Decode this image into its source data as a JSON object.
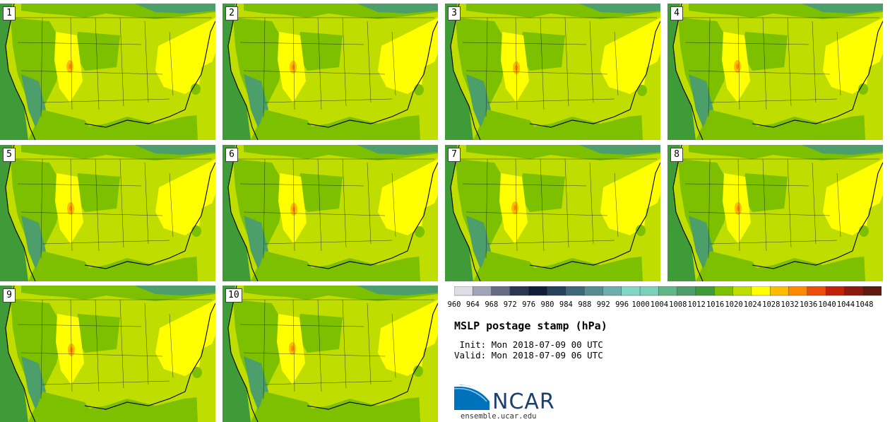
{
  "title": "MSLP postage stamp (hPa)",
  "init_text": " Init: Mon 2018-07-09 00 UTC",
  "valid_text": "Valid: Mon 2018-07-09 06 UTC",
  "logo_text": "NCAR",
  "url_text": "ensemble.ucar.edu",
  "stamps": [
    {
      "label": "1"
    },
    {
      "label": "2"
    },
    {
      "label": "3"
    },
    {
      "label": "4"
    },
    {
      "label": "5"
    },
    {
      "label": "6"
    },
    {
      "label": "7"
    },
    {
      "label": "8"
    },
    {
      "label": "9"
    },
    {
      "label": "10"
    }
  ],
  "colors": {
    "ocean": "#3f9a38",
    "low_land": "#7cc000",
    "mid": "#c0dd00",
    "high": "#ffff00",
    "peak": "#ffbb00",
    "hot": "#ff8800",
    "teal": "#4c9e6a",
    "border": "#000000"
  },
  "chart_data": {
    "type": "heatmap",
    "title": "MSLP postage stamp (hPa)",
    "units": "hPa",
    "colorbar": {
      "tick_labels": [
        "960",
        "964",
        "968",
        "972",
        "976",
        "980",
        "984",
        "988",
        "992",
        "996",
        "1000",
        "1004",
        "1008",
        "1012",
        "1016",
        "1020",
        "1024",
        "1028",
        "1032",
        "1036",
        "1040",
        "1044",
        "1048"
      ],
      "bins": [
        {
          "lower": 960,
          "color": "#dddde6"
        },
        {
          "lower": 964,
          "color": "#a2a4b7"
        },
        {
          "lower": 968,
          "color": "#646b85"
        },
        {
          "lower": 972,
          "color": "#2b3653"
        },
        {
          "lower": 976,
          "color": "#0f1f3b"
        },
        {
          "lower": 980,
          "color": "#26415b"
        },
        {
          "lower": 984,
          "color": "#3e6879"
        },
        {
          "lower": 988,
          "color": "#588c91"
        },
        {
          "lower": 992,
          "color": "#6fadaf"
        },
        {
          "lower": 996,
          "color": "#83d5c6"
        },
        {
          "lower": 1000,
          "color": "#7bd0b9"
        },
        {
          "lower": 1004,
          "color": "#62b787"
        },
        {
          "lower": 1008,
          "color": "#4c9e6a"
        },
        {
          "lower": 1012,
          "color": "#3f9a38"
        },
        {
          "lower": 1016,
          "color": "#7cc000"
        },
        {
          "lower": 1020,
          "color": "#c0dd00"
        },
        {
          "lower": 1024,
          "color": "#ffff00"
        },
        {
          "lower": 1028,
          "color": "#ffbb00"
        },
        {
          "lower": 1032,
          "color": "#ff8800"
        },
        {
          "lower": 1036,
          "color": "#ee4c0b"
        },
        {
          "lower": 1040,
          "color": "#c42208"
        },
        {
          "lower": 1044,
          "color": "#8c1a10"
        },
        {
          "lower": 1048,
          "color": "#5e1a0f"
        }
      ]
    },
    "members": 10
  }
}
